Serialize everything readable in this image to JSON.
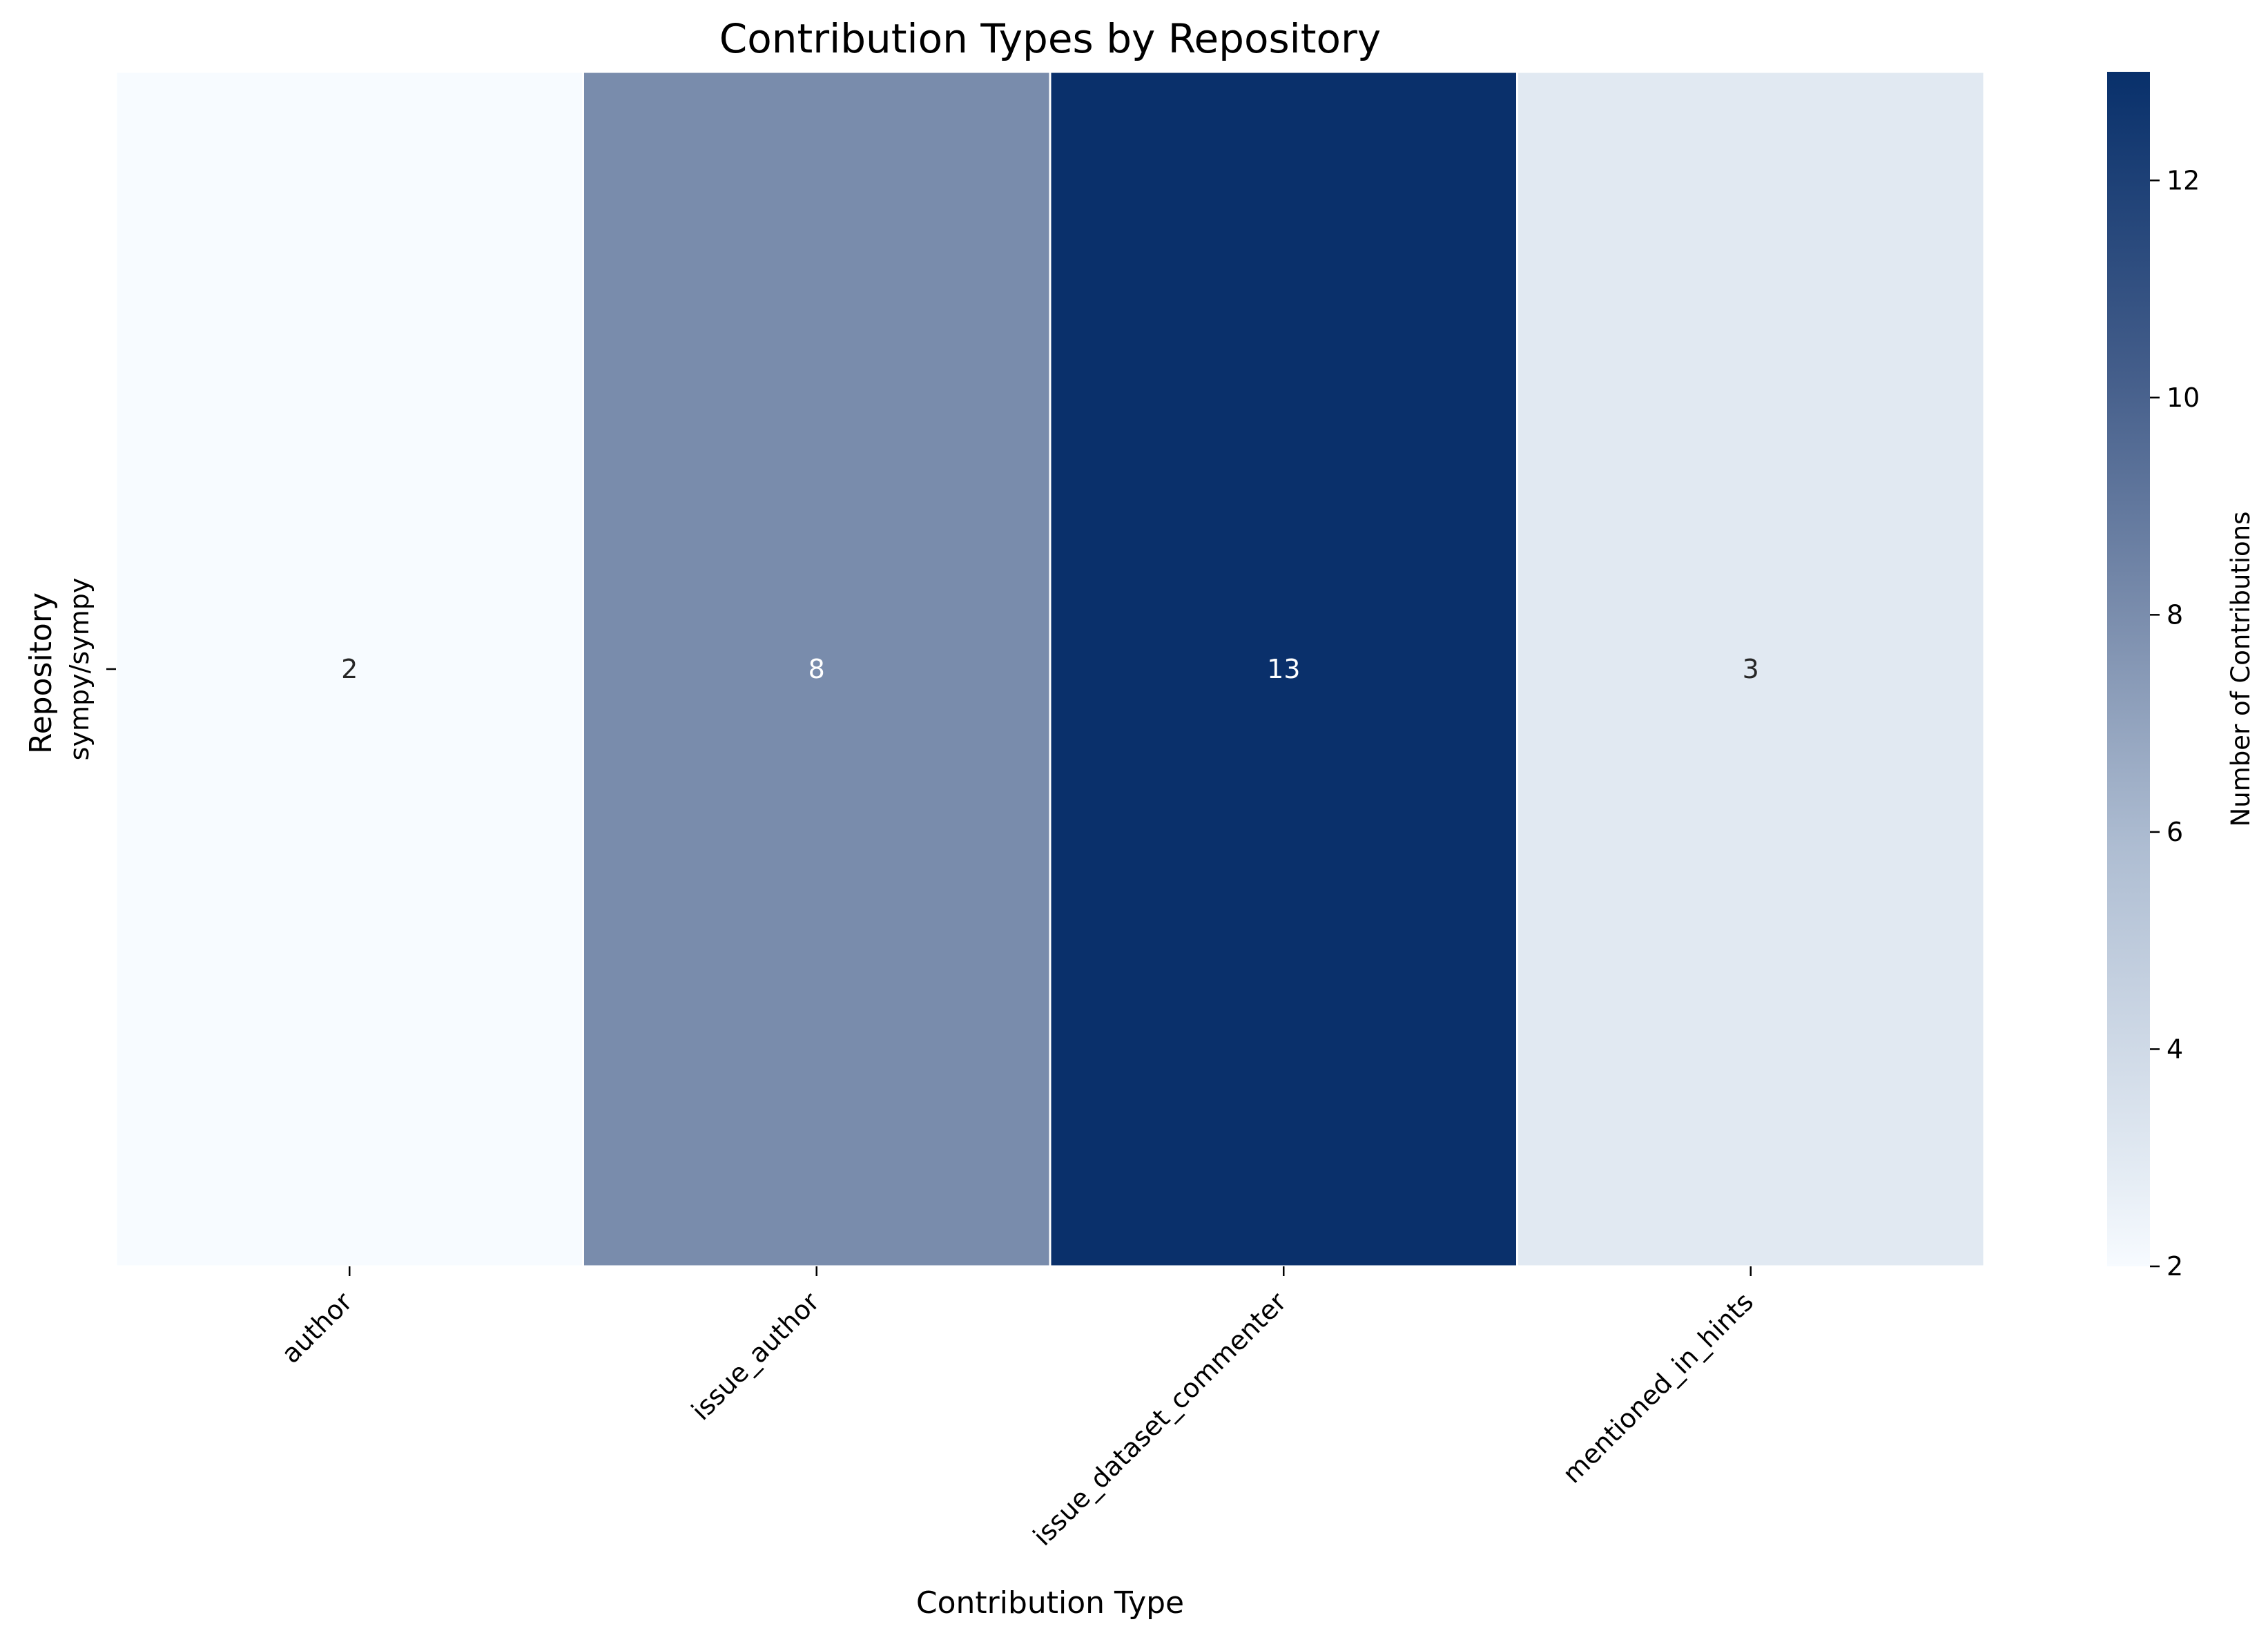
{
  "chart_data": {
    "type": "heatmap",
    "title": "Contribution Types by Repository",
    "xlabel": "Contribution Type",
    "ylabel": "Repository",
    "x_categories": [
      "author",
      "issue_author",
      "issue_dataset_commenter",
      "mentioned_in_hints"
    ],
    "y_categories": [
      "sympy/sympy"
    ],
    "values": [
      [
        2,
        8,
        13,
        3
      ]
    ],
    "annotations": true,
    "colormap": "Blues",
    "colorbar": {
      "label": "Number of Contributions",
      "range": [
        2,
        13
      ],
      "ticks": [
        2,
        4,
        6,
        8,
        10,
        12
      ]
    },
    "colors": {
      "cells": [
        "#f7fbff",
        "#798cac",
        "#0a306b",
        "#e1e9f2"
      ],
      "colorbar_low": "#f7fbff",
      "colorbar_high": "#08306b",
      "annotation_dark_text": "#262626",
      "annotation_light_text": "#ffffff"
    }
  }
}
